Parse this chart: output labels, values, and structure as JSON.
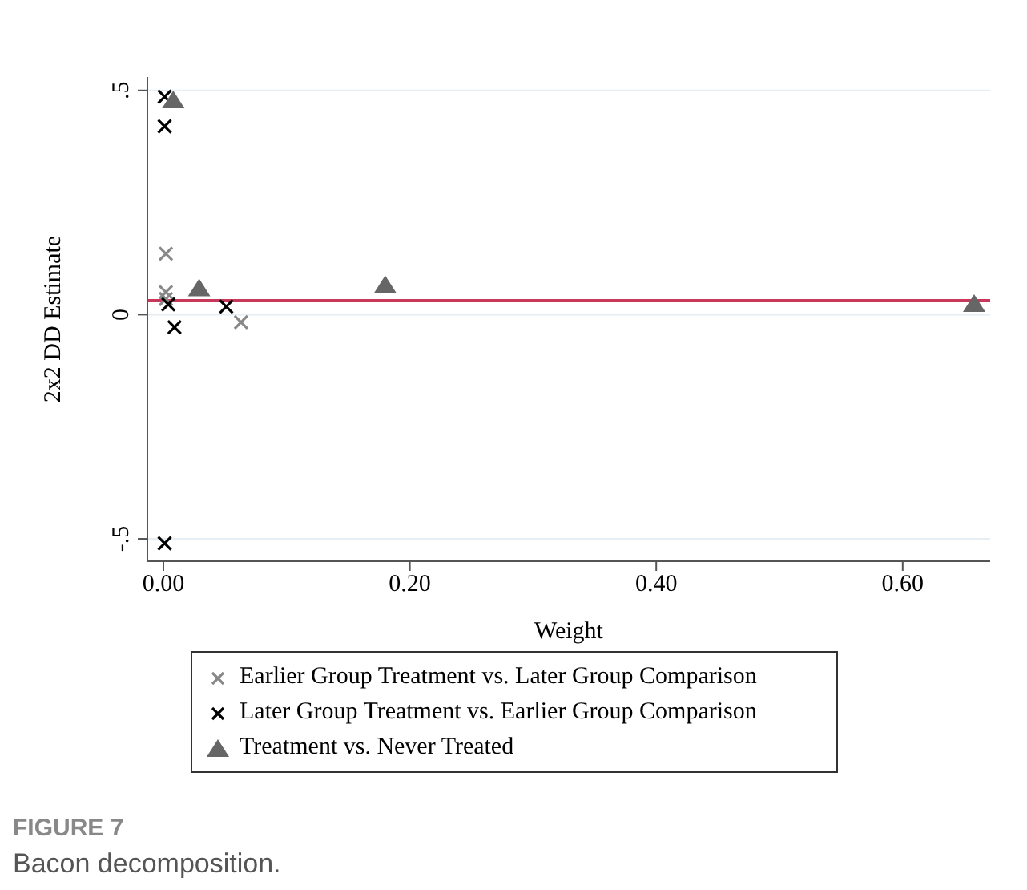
{
  "chart_data": {
    "type": "scatter",
    "xlabel": "Weight",
    "ylabel": "2x2 DD Estimate",
    "xlim": [
      -0.013,
      0.671
    ],
    "xticks": [
      {
        "value": 0,
        "label": "0.00"
      },
      {
        "value": 0.2,
        "label": "0.20"
      },
      {
        "value": 0.4,
        "label": "0.40"
      },
      {
        "value": 0.6,
        "label": "0.60"
      }
    ],
    "ylim": [
      -0.55,
      0.53
    ],
    "yticks": [
      {
        "value": -0.5,
        "label": "-.5"
      },
      {
        "value": 0,
        "label": "0"
      },
      {
        "value": 0.5,
        "label": ".5"
      }
    ],
    "grid": "y",
    "legend": "bottom",
    "series": [
      {
        "name": "Earlier Group Treatment vs. Later Group Comparison",
        "color": "#888888",
        "marker": "cross",
        "x": [
          0.002,
          0.002,
          0.002,
          0.004,
          0.063
        ],
        "values": [
          0.136,
          0.05,
          0.035,
          null,
          -0.017
        ]
      },
      {
        "name": "Later Group Treatment vs. Earlier Group Comparison",
        "color": "#000000",
        "marker": "cross",
        "x": [
          0.001,
          0.001,
          0.004,
          0.009,
          0.051,
          0.001
        ],
        "values": [
          0.486,
          0.42,
          0.023,
          -0.028,
          0.018,
          -0.51
        ]
      },
      {
        "name": "Treatment vs. Never Treated",
        "color": "#666666",
        "marker": "triangle",
        "x": [
          0.008,
          0.029,
          0.18,
          0.658
        ],
        "values": [
          0.478,
          0.059,
          0.066,
          0.024
        ]
      }
    ],
    "ref_lines": [
      {
        "axis": "y",
        "value": 0.031,
        "label": null,
        "color": "#c8385a"
      }
    ],
    "annotations": [
      "FIGURE 7",
      "Bacon decomposition."
    ]
  }
}
